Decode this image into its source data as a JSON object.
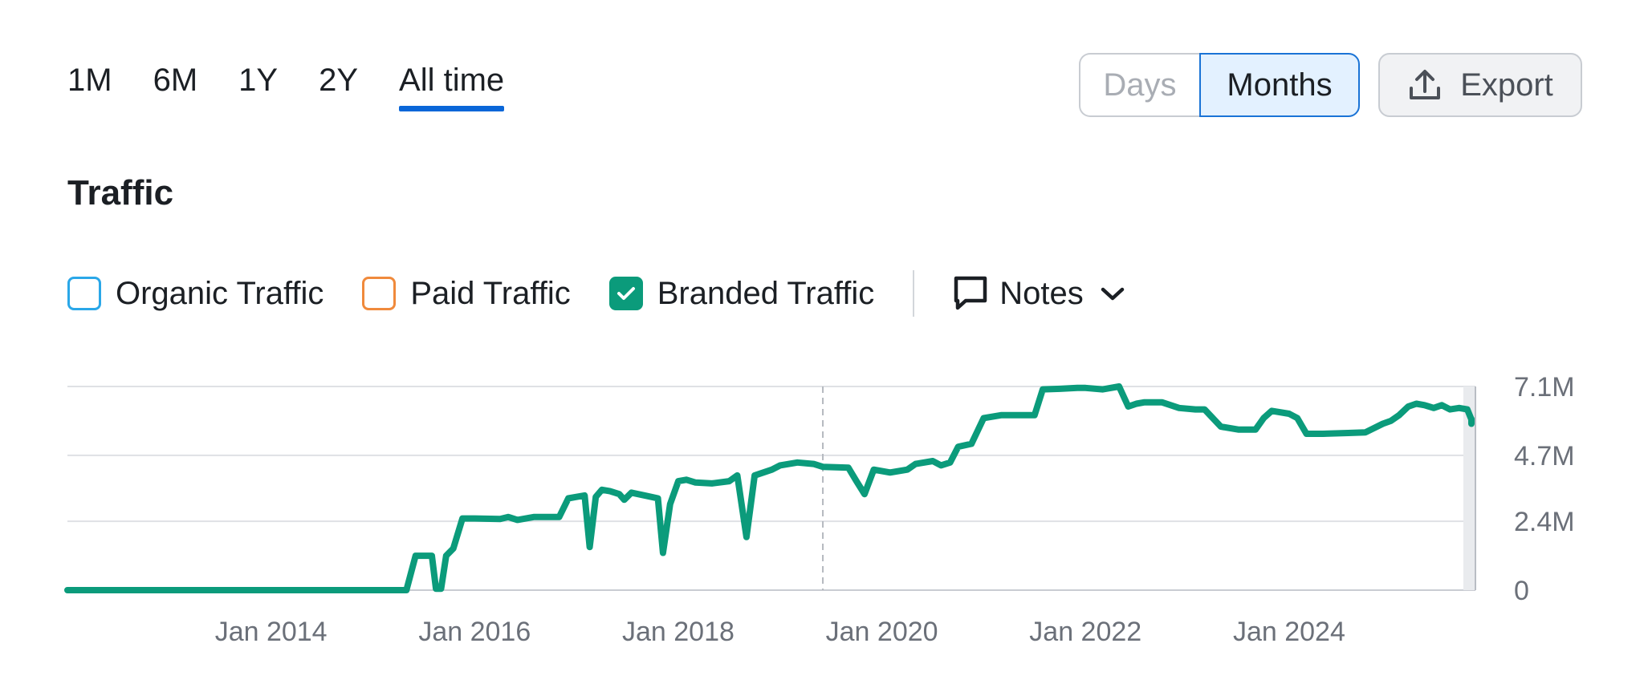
{
  "periods": [
    {
      "label": "1M",
      "active": false
    },
    {
      "label": "6M",
      "active": false
    },
    {
      "label": "1Y",
      "active": false
    },
    {
      "label": "2Y",
      "active": false
    },
    {
      "label": "All time",
      "active": true
    }
  ],
  "granularity": {
    "days": "Days",
    "months": "Months",
    "selected": "Months"
  },
  "export_label": "Export",
  "section_title": "Traffic",
  "legend": {
    "organic": "Organic Traffic",
    "paid": "Paid Traffic",
    "branded": "Branded Traffic",
    "notes": "Notes"
  },
  "colors": {
    "branded": "#0b9b7b",
    "organic": "#2aa7e8",
    "paid": "#f08a3c",
    "accent": "#0a66d8"
  },
  "icons": [
    "upload-icon",
    "check-icon",
    "comment-icon",
    "chevron-down-icon"
  ],
  "chart_data": {
    "type": "line",
    "y_ticks": [
      {
        "value": 0,
        "label": "0"
      },
      {
        "value": 2.4,
        "label": "2.4M"
      },
      {
        "value": 4.7,
        "label": "4.7M"
      },
      {
        "value": 7.1,
        "label": "7.1M"
      }
    ],
    "x_ticks": [
      {
        "value": 2014.0,
        "label": "Jan 2014"
      },
      {
        "value": 2016.0,
        "label": "Jan 2016"
      },
      {
        "value": 2018.0,
        "label": "Jan 2018"
      },
      {
        "value": 2020.0,
        "label": "Jan 2020"
      },
      {
        "value": 2022.0,
        "label": "Jan 2022"
      },
      {
        "value": 2024.0,
        "label": "Jan 2024"
      }
    ],
    "xlim": [
      2012.0,
      2025.83
    ],
    "ylim": [
      0,
      7.1
    ],
    "y_unit": "millions",
    "grid": true,
    "marker_date": 2019.42,
    "series": [
      {
        "name": "Branded Traffic",
        "color": "#0b9b7b",
        "points": [
          [
            2012.0,
            0
          ],
          [
            2015.33,
            0
          ],
          [
            2015.42,
            1.2
          ],
          [
            2015.5,
            1.2
          ],
          [
            2015.58,
            1.2
          ],
          [
            2015.62,
            0.05
          ],
          [
            2015.67,
            0.05
          ],
          [
            2015.72,
            1.2
          ],
          [
            2015.79,
            1.45
          ],
          [
            2015.88,
            2.5
          ],
          [
            2016.0,
            2.5
          ],
          [
            2016.25,
            2.48
          ],
          [
            2016.33,
            2.55
          ],
          [
            2016.42,
            2.45
          ],
          [
            2016.58,
            2.55
          ],
          [
            2016.83,
            2.55
          ],
          [
            2016.92,
            3.2
          ],
          [
            2017.0,
            3.25
          ],
          [
            2017.08,
            3.3
          ],
          [
            2017.13,
            1.5
          ],
          [
            2017.19,
            3.25
          ],
          [
            2017.25,
            3.5
          ],
          [
            2017.33,
            3.45
          ],
          [
            2017.42,
            3.35
          ],
          [
            2017.47,
            3.15
          ],
          [
            2017.54,
            3.4
          ],
          [
            2017.67,
            3.3
          ],
          [
            2017.8,
            3.2
          ],
          [
            2017.85,
            1.3
          ],
          [
            2017.92,
            3.0
          ],
          [
            2018.0,
            3.8
          ],
          [
            2018.08,
            3.85
          ],
          [
            2018.17,
            3.75
          ],
          [
            2018.33,
            3.72
          ],
          [
            2018.5,
            3.8
          ],
          [
            2018.58,
            4.0
          ],
          [
            2018.67,
            1.85
          ],
          [
            2018.75,
            4.0
          ],
          [
            2018.92,
            4.2
          ],
          [
            2019.0,
            4.35
          ],
          [
            2019.17,
            4.45
          ],
          [
            2019.33,
            4.4
          ],
          [
            2019.42,
            4.3
          ],
          [
            2019.58,
            4.28
          ],
          [
            2019.67,
            4.27
          ],
          [
            2019.75,
            3.8
          ],
          [
            2019.83,
            3.35
          ],
          [
            2019.92,
            4.2
          ],
          [
            2020.08,
            4.1
          ],
          [
            2020.25,
            4.2
          ],
          [
            2020.33,
            4.4
          ],
          [
            2020.5,
            4.5
          ],
          [
            2020.58,
            4.35
          ],
          [
            2020.67,
            4.45
          ],
          [
            2020.75,
            5.0
          ],
          [
            2020.88,
            5.1
          ],
          [
            2021.0,
            6.0
          ],
          [
            2021.17,
            6.1
          ],
          [
            2021.33,
            6.1
          ],
          [
            2021.5,
            6.1
          ],
          [
            2021.58,
            7.0
          ],
          [
            2021.75,
            7.02
          ],
          [
            2021.92,
            7.05
          ],
          [
            2022.0,
            7.05
          ],
          [
            2022.17,
            7.0
          ],
          [
            2022.33,
            7.1
          ],
          [
            2022.42,
            6.4
          ],
          [
            2022.5,
            6.5
          ],
          [
            2022.58,
            6.55
          ],
          [
            2022.75,
            6.55
          ],
          [
            2022.92,
            6.35
          ],
          [
            2023.08,
            6.3
          ],
          [
            2023.17,
            6.3
          ],
          [
            2023.33,
            5.7
          ],
          [
            2023.5,
            5.6
          ],
          [
            2023.67,
            5.6
          ],
          [
            2023.75,
            6.0
          ],
          [
            2023.83,
            6.25
          ],
          [
            2024.0,
            6.15
          ],
          [
            2024.08,
            6.0
          ],
          [
            2024.17,
            5.45
          ],
          [
            2024.33,
            5.45
          ],
          [
            2024.58,
            5.48
          ],
          [
            2024.75,
            5.5
          ],
          [
            2024.92,
            5.8
          ],
          [
            2025.0,
            5.9
          ],
          [
            2025.08,
            6.1
          ],
          [
            2025.17,
            6.4
          ],
          [
            2025.25,
            6.5
          ],
          [
            2025.33,
            6.45
          ],
          [
            2025.42,
            6.35
          ],
          [
            2025.5,
            6.45
          ],
          [
            2025.58,
            6.3
          ],
          [
            2025.67,
            6.35
          ],
          [
            2025.75,
            6.3
          ],
          [
            2025.83,
            5.95
          ],
          [
            2025.92,
            5.8
          ],
          [
            2026.0,
            5.85
          ],
          [
            2026.08,
            5.97
          ],
          [
            2026.17,
            5.9
          ]
        ]
      }
    ]
  }
}
